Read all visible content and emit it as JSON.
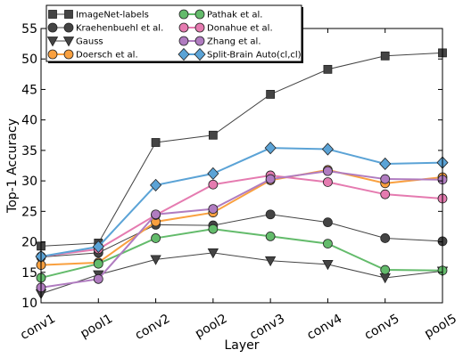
{
  "chart_data": {
    "type": "line",
    "xlabel": "Layer",
    "ylabel": "Top-1 Accuracy",
    "categories": [
      "conv1",
      "pool1",
      "conv2",
      "pool2",
      "conv3",
      "conv4",
      "conv5",
      "pool5"
    ],
    "ylim": [
      10,
      55
    ],
    "yticks": [
      10,
      15,
      20,
      25,
      30,
      35,
      40,
      45,
      50,
      55
    ],
    "grid": false,
    "legend_position": "top-left",
    "legend_columns": 2,
    "series": [
      {
        "name": "ImageNet-labels",
        "color": "#444444",
        "marker": "square",
        "line_width": 1,
        "values": [
          19.3,
          19.8,
          36.3,
          37.5,
          44.2,
          48.3,
          50.5,
          51.0
        ]
      },
      {
        "name": "Kraehenbuehl et al.",
        "color": "#444444",
        "marker": "circle",
        "line_width": 1,
        "values": [
          17.5,
          18.2,
          22.8,
          22.7,
          24.5,
          23.2,
          20.6,
          20.1
        ]
      },
      {
        "name": "Gauss",
        "color": "#444444",
        "marker": "triangle-down",
        "line_width": 1,
        "values": [
          11.5,
          14.6,
          17.1,
          18.2,
          16.9,
          16.3,
          14.1,
          15.2
        ]
      },
      {
        "name": "Doersch et al.",
        "color": "#F9A03F",
        "marker": "circle",
        "line_width": 2,
        "values": [
          16.2,
          16.6,
          23.3,
          24.8,
          30.1,
          31.8,
          29.6,
          30.6
        ]
      },
      {
        "name": "Pathak et al.",
        "color": "#63BB6B",
        "marker": "circle",
        "line_width": 2,
        "values": [
          14.1,
          16.4,
          20.6,
          22.1,
          20.9,
          19.7,
          15.4,
          15.3
        ]
      },
      {
        "name": "Donahue et al.",
        "color": "#E57BB0",
        "marker": "circle",
        "line_width": 2,
        "values": [
          17.6,
          18.8,
          24.4,
          29.4,
          30.9,
          29.8,
          27.8,
          27.1
        ]
      },
      {
        "name": "Zhang et al.",
        "color": "#B07CC0",
        "marker": "circle",
        "line_width": 2,
        "values": [
          12.5,
          13.9,
          24.5,
          25.4,
          30.3,
          31.6,
          30.3,
          30.2
        ]
      },
      {
        "name": "Split-Brain Auto(cl,cl)",
        "color": "#5BA3D6",
        "marker": "diamond",
        "line_width": 2,
        "values": [
          17.6,
          19.2,
          29.3,
          31.2,
          35.4,
          35.2,
          32.8,
          33.0
        ]
      }
    ]
  }
}
